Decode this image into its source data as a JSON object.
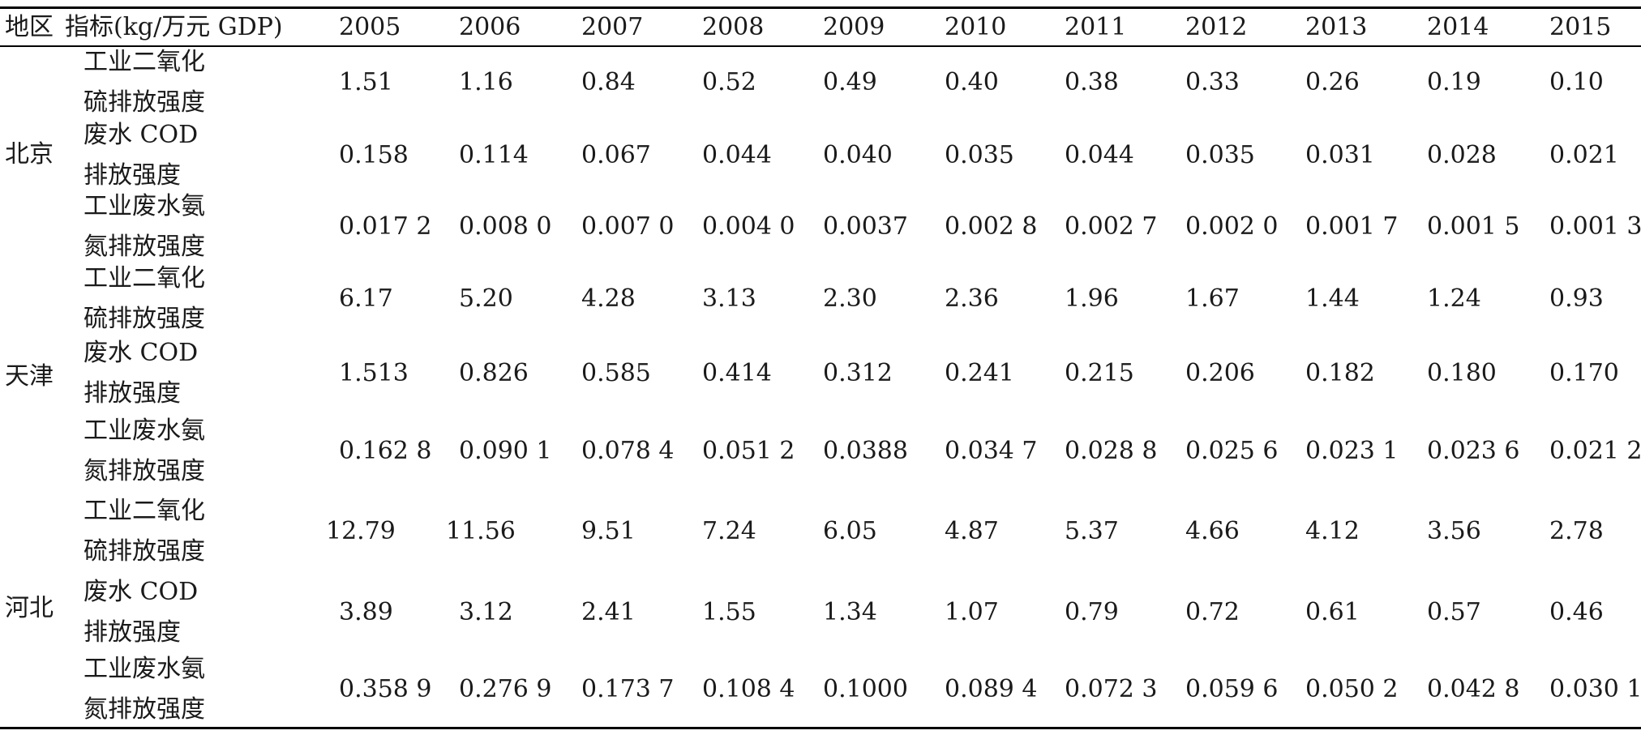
{
  "table": {
    "headers": {
      "region": "地区",
      "indicator": "指标(kg/万元 GDP)",
      "years": [
        "2005",
        "2006",
        "2007",
        "2008",
        "2009",
        "2010",
        "2011",
        "2012",
        "2013",
        "2014",
        "2015"
      ]
    },
    "groups": [
      {
        "region": "北京",
        "rows": [
          {
            "indicator": [
              "工业二氧化",
              "硫排放强度"
            ],
            "values": [
              "1.51",
              "1.16",
              "0.84",
              "0.52",
              "0.49",
              "0.40",
              "0.38",
              "0.33",
              "0.26",
              "0.19",
              "0.10"
            ]
          },
          {
            "indicator": [
              "废水 COD",
              "排放强度"
            ],
            "values": [
              "0.158",
              "0.114",
              "0.067",
              "0.044",
              "0.040",
              "0.035",
              "0.044",
              "0.035",
              "0.031",
              "0.028",
              "0.021"
            ]
          },
          {
            "indicator": [
              "工业废水氨",
              "氮排放强度"
            ],
            "values": [
              "0.017 2",
              "0.008 0",
              "0.007 0",
              "0.004 0",
              "0.0037",
              "0.002 8",
              "0.002 7",
              "0.002 0",
              "0.001 7",
              "0.001 5",
              "0.001 3"
            ]
          }
        ]
      },
      {
        "region": "天津",
        "rows": [
          {
            "indicator": [
              "工业二氧化",
              "硫排放强度"
            ],
            "values": [
              "6.17",
              "5.20",
              "4.28",
              "3.13",
              "2.30",
              "2.36",
              "1.96",
              "1.67",
              "1.44",
              "1.24",
              "0.93"
            ]
          },
          {
            "indicator": [
              "废水 COD",
              "排放强度"
            ],
            "values": [
              "1.513",
              "0.826",
              "0.585",
              "0.414",
              "0.312",
              "0.241",
              "0.215",
              "0.206",
              "0.182",
              "0.180",
              "0.170"
            ]
          },
          {
            "indicator": [
              "工业废水氨",
              "氮排放强度"
            ],
            "values": [
              "0.162 8",
              "0.090 1",
              "0.078 4",
              "0.051 2",
              "0.0388",
              "0.034 7",
              "0.028 8",
              "0.025 6",
              "0.023 1",
              "0.023 6",
              "0.021 2"
            ]
          }
        ]
      },
      {
        "region": "河北",
        "rows": [
          {
            "indicator": [
              "工业二氧化",
              "硫排放强度"
            ],
            "values": [
              "12.79",
              "11.56",
              "9.51",
              "7.24",
              "6.05",
              "4.87",
              "5.37",
              "4.66",
              "4.12",
              "3.56",
              "2.78"
            ]
          },
          {
            "indicator": [
              "废水 COD",
              "排放强度"
            ],
            "values": [
              "3.89",
              "3.12",
              "2.41",
              "1.55",
              "1.34",
              "1.07",
              "0.79",
              "0.72",
              "0.61",
              "0.57",
              "0.46"
            ]
          },
          {
            "indicator": [
              "工业废水氨",
              "氮排放强度"
            ],
            "values": [
              "0.358 9",
              "0.276 9",
              "0.173 7",
              "0.108 4",
              "0.1000",
              "0.089 4",
              "0.072 3",
              "0.059 6",
              "0.050 2",
              "0.042 8",
              "0.030 1"
            ]
          }
        ]
      }
    ]
  }
}
